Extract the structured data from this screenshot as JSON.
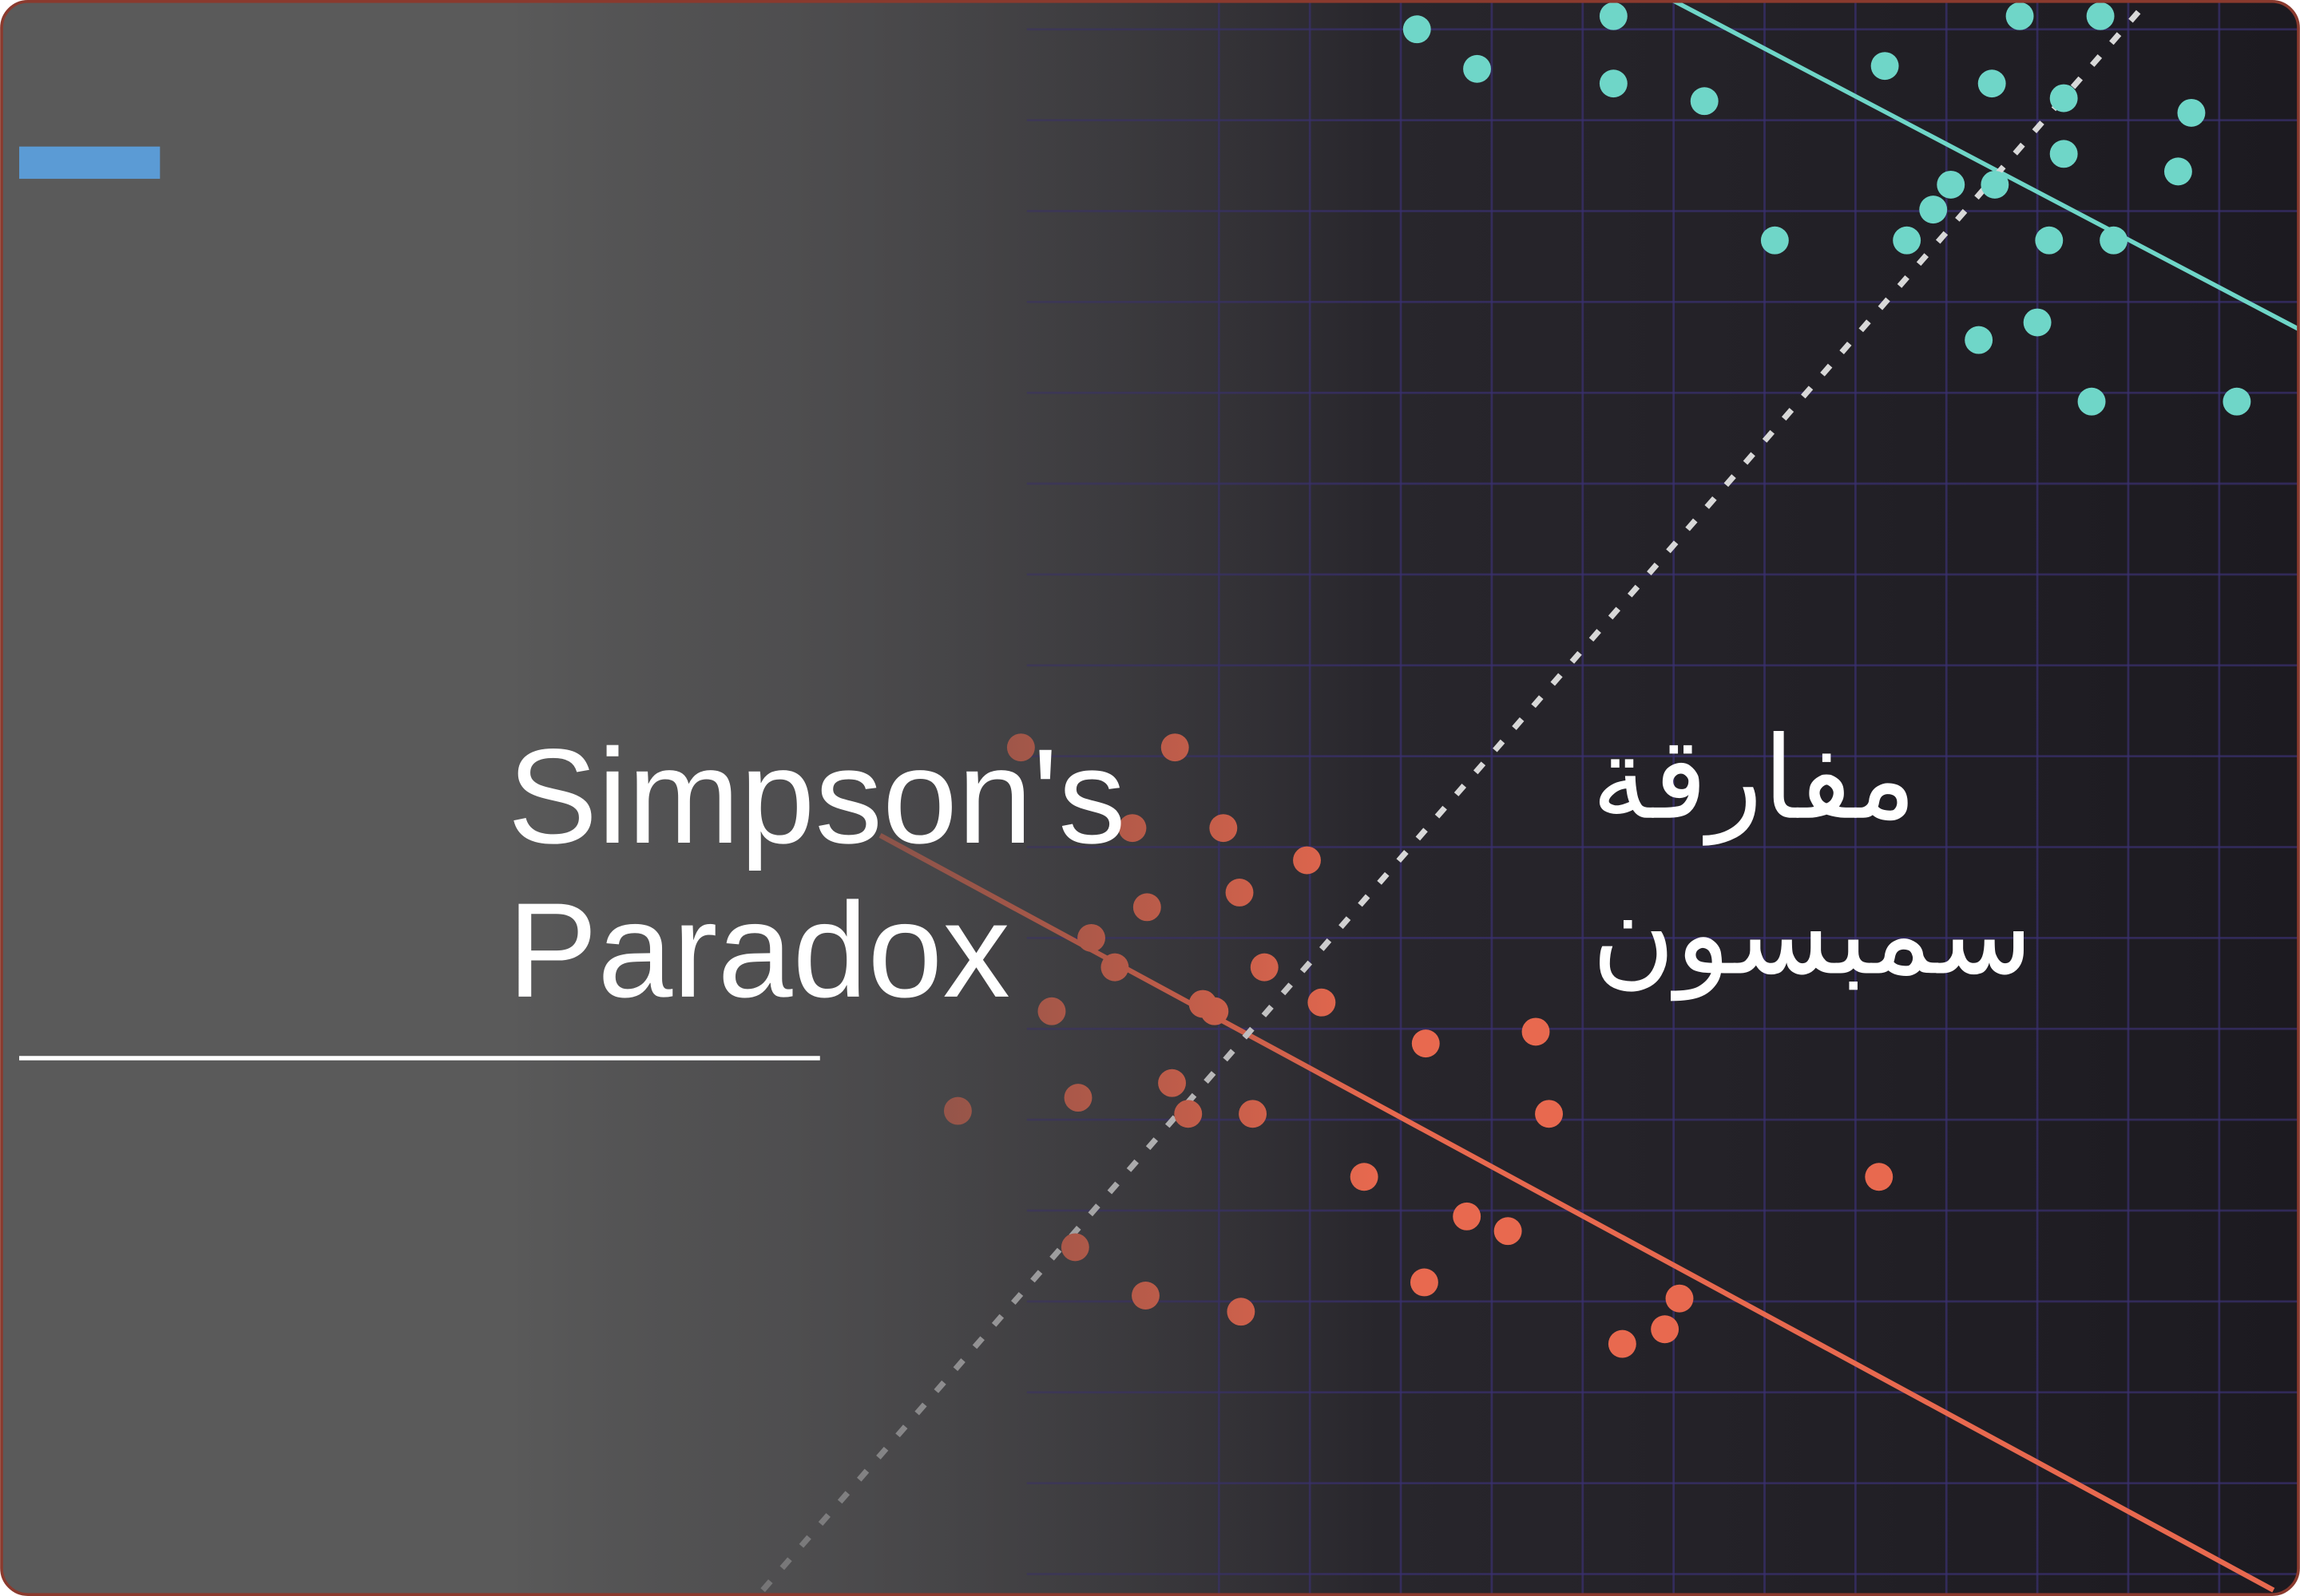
{
  "title_en": [
    "Simpson's",
    "Paradox"
  ],
  "title_ar": [
    "مفارقة",
    "سمبسون"
  ]
}
